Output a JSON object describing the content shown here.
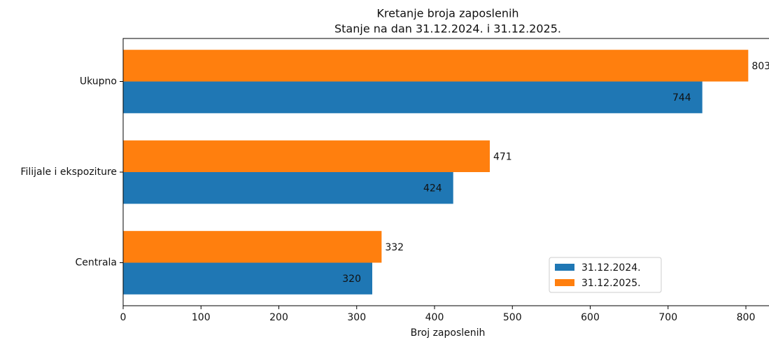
{
  "chart_data": {
    "type": "barh",
    "title": "Kretanje broja zaposlenih",
    "subtitle": "Stanje na dan 31.12.2024. i 31.12.2025.",
    "x_label": "Broj zaposlenih",
    "categories": [
      "Centrala",
      "Filijale i ekspoziture",
      "Ukupno"
    ],
    "series": [
      {
        "name": "31.12.2024.",
        "color": "#1f77b4",
        "values": [
          320,
          424,
          744
        ]
      },
      {
        "name": "31.12.2025.",
        "color": "#ff7f0e",
        "values": [
          332,
          471,
          803
        ]
      }
    ],
    "xlim": [
      0,
      843
    ],
    "xticks": [
      0,
      100,
      200,
      300,
      400,
      500,
      600,
      700,
      800
    ],
    "legend": "lower right"
  }
}
